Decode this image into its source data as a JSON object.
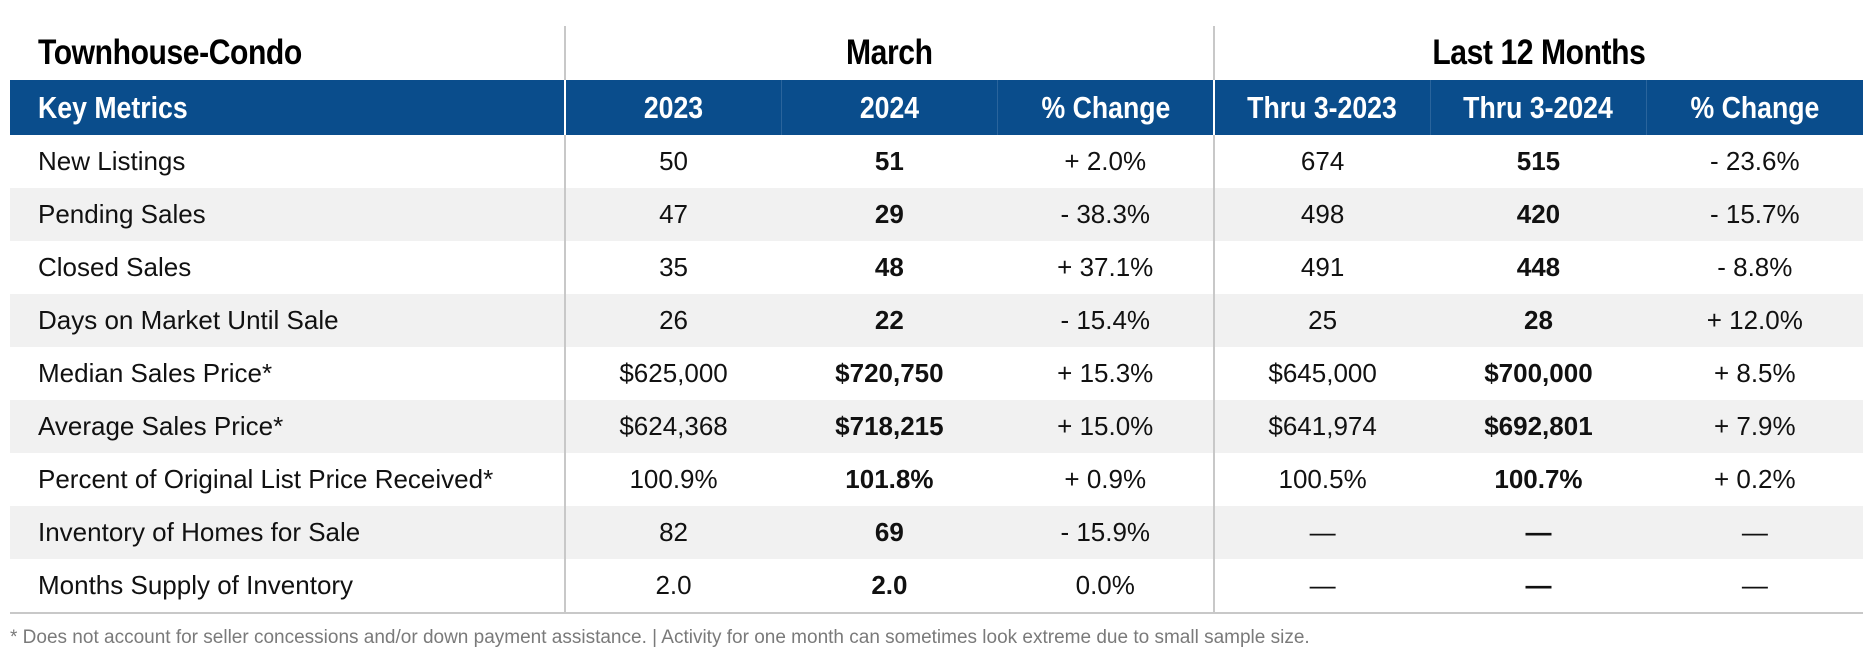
{
  "section_title": "Townhouse-Condo",
  "group_titles": {
    "month": "March",
    "ytd": "Last 12 Months"
  },
  "headers": {
    "metric": "Key Metrics",
    "m_prev": "2023",
    "m_curr": "2024",
    "m_change": "% Change",
    "y_prev": "Thru 3-2023",
    "y_curr": "Thru 3-2024",
    "y_change": "% Change"
  },
  "rows": [
    {
      "metric": "New Listings",
      "m_prev": "50",
      "m_curr": "51",
      "m_change": "+ 2.0%",
      "y_prev": "674",
      "y_curr": "515",
      "y_change": "- 23.6%"
    },
    {
      "metric": "Pending Sales",
      "m_prev": "47",
      "m_curr": "29",
      "m_change": "- 38.3%",
      "y_prev": "498",
      "y_curr": "420",
      "y_change": "- 15.7%"
    },
    {
      "metric": "Closed Sales",
      "m_prev": "35",
      "m_curr": "48",
      "m_change": "+ 37.1%",
      "y_prev": "491",
      "y_curr": "448",
      "y_change": "- 8.8%"
    },
    {
      "metric": "Days on Market Until Sale",
      "m_prev": "26",
      "m_curr": "22",
      "m_change": "- 15.4%",
      "y_prev": "25",
      "y_curr": "28",
      "y_change": "+ 12.0%"
    },
    {
      "metric": "Median Sales Price*",
      "m_prev": "$625,000",
      "m_curr": "$720,750",
      "m_change": "+ 15.3%",
      "y_prev": "$645,000",
      "y_curr": "$700,000",
      "y_change": "+ 8.5%"
    },
    {
      "metric": "Average Sales Price*",
      "m_prev": "$624,368",
      "m_curr": "$718,215",
      "m_change": "+ 15.0%",
      "y_prev": "$641,974",
      "y_curr": "$692,801",
      "y_change": "+ 7.9%"
    },
    {
      "metric": "Percent of Original List Price Received*",
      "m_prev": "100.9%",
      "m_curr": "101.8%",
      "m_change": "+ 0.9%",
      "y_prev": "100.5%",
      "y_curr": "100.7%",
      "y_change": "+ 0.2%"
    },
    {
      "metric": "Inventory of Homes for Sale",
      "m_prev": "82",
      "m_curr": "69",
      "m_change": "- 15.9%",
      "y_prev": "—",
      "y_curr": "—",
      "y_change": "—"
    },
    {
      "metric": "Months Supply of Inventory",
      "m_prev": "2.0",
      "m_curr": "2.0",
      "m_change": "0.0%",
      "y_prev": "—",
      "y_curr": "—",
      "y_change": "—"
    }
  ],
  "footnote": "* Does not account for seller concessions and/or down payment assistance. | Activity for one month can sometimes look extreme due to small sample size.",
  "colors": {
    "header_bg": "#0a4d8c",
    "header_text": "#ffffff",
    "stripe": "#f1f1f1",
    "divider": "#c8c8c8",
    "footnote": "#7a7a7a"
  }
}
